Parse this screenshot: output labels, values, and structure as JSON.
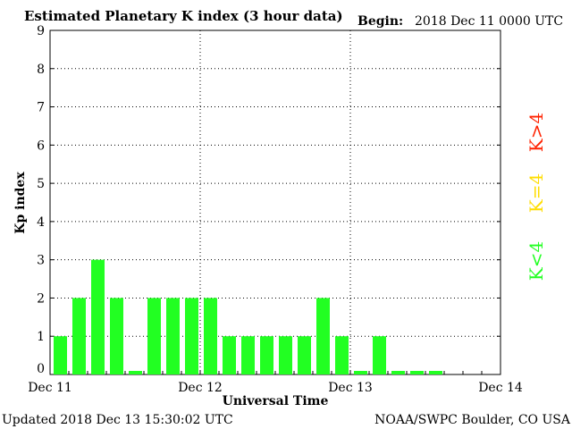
{
  "header": {
    "title": "Estimated Planetary K index (3 hour data)",
    "begin_label": "Begin:",
    "begin_value": "2018 Dec 11 0000 UTC"
  },
  "footer": {
    "updated": "Updated 2018 Dec 13 15:30:02 UTC",
    "source": "NOAA/SWPC Boulder, CO USA"
  },
  "legend": {
    "high": "K>4",
    "equal": "K=4",
    "low": "K<4"
  },
  "colors": {
    "low": "#22ff22",
    "equal": "#ffdd00",
    "high": "#ff2200"
  },
  "chart_data": {
    "type": "bar",
    "xlabel": "Universal Time",
    "ylabel": "Kp index",
    "ylim": [
      0,
      9
    ],
    "yticks": [
      "0",
      "1",
      "2",
      "3",
      "4",
      "5",
      "6",
      "7",
      "8",
      "9"
    ],
    "xticks": [
      "Dec 11",
      "Dec 12",
      "Dec 13",
      "Dec 14"
    ],
    "interval_hours": 3,
    "values": [
      1,
      2,
      3,
      2,
      0,
      2,
      2,
      2,
      2,
      1,
      1,
      1,
      1,
      1,
      2,
      1,
      0,
      1,
      0,
      0,
      0
    ]
  }
}
